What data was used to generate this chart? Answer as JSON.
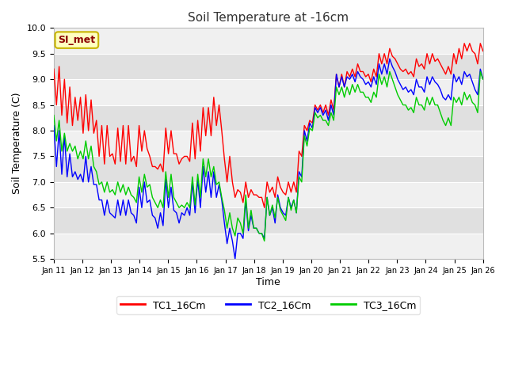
{
  "title": "Soil Temperature at -16cm",
  "xlabel": "Time",
  "ylabel": "Soil Temperature (C)",
  "ylim": [
    5.5,
    10.0
  ],
  "figure_facecolor": "#f0f0f0",
  "plot_bg_light": "#f0f0f0",
  "plot_bg_dark": "#e0e0e0",
  "annotation_text": "SI_met",
  "annotation_text_color": "#8b0000",
  "annotation_bg_color": "#ffffc0",
  "annotation_border_color": "#c8b400",
  "legend_labels": [
    "TC1_16Cm",
    "TC2_16Cm",
    "TC3_16Cm"
  ],
  "line_colors": [
    "#ff0000",
    "#0000ff",
    "#00cc00"
  ],
  "tick_labels": [
    "Jan 11",
    "Jan 12",
    "Jan 13",
    "Jan 14",
    "Jan 15",
    "Jan 16",
    "Jan 17",
    "Jan 18",
    "Jan 19",
    "Jan 20",
    "Jan 21",
    "Jan 22",
    "Jan 23",
    "Jan 24",
    "Jan 25",
    "Jan 26"
  ],
  "yticks": [
    5.5,
    6.0,
    6.5,
    7.0,
    7.5,
    8.0,
    8.5,
    9.0,
    9.5,
    10.0
  ],
  "tc1": [
    9.2,
    8.5,
    9.25,
    8.3,
    9.0,
    8.15,
    8.85,
    8.1,
    8.65,
    8.2,
    8.65,
    7.95,
    8.7,
    8.0,
    8.6,
    7.95,
    8.2,
    7.5,
    8.1,
    7.35,
    8.1,
    7.5,
    7.55,
    7.35,
    8.05,
    7.4,
    8.1,
    7.35,
    8.1,
    7.4,
    7.5,
    7.3,
    8.1,
    7.6,
    8.0,
    7.65,
    7.5,
    7.3,
    7.3,
    7.25,
    7.35,
    7.2,
    8.05,
    7.55,
    8.0,
    7.55,
    7.55,
    7.35,
    7.45,
    7.5,
    7.5,
    7.4,
    8.15,
    7.45,
    8.2,
    7.6,
    8.45,
    7.9,
    8.45,
    7.9,
    8.65,
    8.1,
    8.5,
    8.0,
    7.45,
    7.0,
    7.5,
    7.0,
    6.7,
    6.85,
    6.8,
    6.6,
    7.0,
    6.7,
    6.85,
    6.75,
    6.75,
    6.7,
    6.7,
    6.5,
    7.0,
    6.8,
    6.9,
    6.7,
    7.1,
    6.9,
    6.8,
    6.75,
    7.0,
    6.8,
    7.0,
    6.8,
    7.6,
    7.5,
    8.1,
    8.0,
    8.2,
    8.15,
    8.5,
    8.4,
    8.5,
    8.35,
    8.5,
    8.3,
    8.6,
    8.4,
    9.1,
    8.85,
    9.1,
    8.85,
    9.15,
    9.05,
    9.2,
    9.05,
    9.3,
    9.15,
    9.15,
    9.05,
    9.1,
    8.95,
    9.2,
    9.05,
    9.5,
    9.3,
    9.5,
    9.3,
    9.6,
    9.45,
    9.4,
    9.3,
    9.2,
    9.15,
    9.2,
    9.1,
    9.15,
    9.05,
    9.4,
    9.25,
    9.3,
    9.2,
    9.5,
    9.3,
    9.5,
    9.35,
    9.4,
    9.3,
    9.2,
    9.1,
    9.25,
    9.1,
    9.5,
    9.3,
    9.6,
    9.4,
    9.7,
    9.55,
    9.7,
    9.55,
    9.5,
    9.3,
    9.7,
    9.55
  ],
  "tc2": [
    8.1,
    7.3,
    8.0,
    7.15,
    7.9,
    7.1,
    7.55,
    7.1,
    7.2,
    7.05,
    7.15,
    7.0,
    7.5,
    7.0,
    7.3,
    6.95,
    6.95,
    6.65,
    6.65,
    6.35,
    6.65,
    6.4,
    6.35,
    6.3,
    6.65,
    6.35,
    6.65,
    6.35,
    6.65,
    6.4,
    6.35,
    6.2,
    6.9,
    6.5,
    7.0,
    6.6,
    6.65,
    6.35,
    6.3,
    6.1,
    6.4,
    6.15,
    7.05,
    6.5,
    6.9,
    6.45,
    6.4,
    6.2,
    6.4,
    6.35,
    6.5,
    6.35,
    7.0,
    6.4,
    7.05,
    6.5,
    7.3,
    6.8,
    7.2,
    6.7,
    7.2,
    6.7,
    6.95,
    6.65,
    6.2,
    5.8,
    6.1,
    5.85,
    5.5,
    6.0,
    6.0,
    5.9,
    6.65,
    6.05,
    6.35,
    6.1,
    6.1,
    6.0,
    6.0,
    5.9,
    6.7,
    6.35,
    6.5,
    6.2,
    6.75,
    6.5,
    6.4,
    6.35,
    6.7,
    6.5,
    6.65,
    6.4,
    7.2,
    7.1,
    8.0,
    7.8,
    8.15,
    8.05,
    8.45,
    8.35,
    8.45,
    8.3,
    8.4,
    8.2,
    8.5,
    8.3,
    9.1,
    8.85,
    9.05,
    8.85,
    9.05,
    9.0,
    9.1,
    8.95,
    9.15,
    9.05,
    9.0,
    8.9,
    8.95,
    8.85,
    9.05,
    8.9,
    9.3,
    9.1,
    9.3,
    9.1,
    9.4,
    9.25,
    9.15,
    9.0,
    8.9,
    8.8,
    8.85,
    8.75,
    8.8,
    8.7,
    9.0,
    8.85,
    8.85,
    8.75,
    9.05,
    8.9,
    9.05,
    8.95,
    8.9,
    8.8,
    8.65,
    8.6,
    8.7,
    8.6,
    9.1,
    8.95,
    9.05,
    8.9,
    9.15,
    9.05,
    9.1,
    8.95,
    8.8,
    8.7,
    9.2,
    9.0
  ],
  "tc3": [
    8.3,
    7.8,
    8.2,
    7.6,
    7.95,
    7.6,
    7.75,
    7.6,
    7.7,
    7.45,
    7.6,
    7.45,
    7.8,
    7.45,
    7.7,
    7.3,
    7.2,
    6.95,
    7.0,
    6.8,
    7.0,
    6.8,
    6.85,
    6.75,
    7.0,
    6.8,
    6.95,
    6.75,
    6.9,
    6.75,
    6.7,
    6.6,
    7.1,
    6.8,
    7.15,
    6.9,
    6.95,
    6.7,
    6.6,
    6.5,
    6.65,
    6.5,
    7.2,
    6.7,
    7.15,
    6.7,
    6.6,
    6.5,
    6.55,
    6.5,
    6.6,
    6.5,
    7.1,
    6.55,
    7.15,
    6.7,
    7.45,
    7.1,
    7.45,
    7.1,
    7.3,
    6.95,
    7.0,
    6.7,
    6.45,
    6.1,
    6.4,
    6.1,
    5.95,
    6.3,
    6.2,
    6.0,
    6.75,
    6.1,
    6.45,
    6.1,
    6.1,
    6.0,
    6.0,
    5.85,
    6.7,
    6.35,
    6.55,
    6.3,
    6.7,
    6.45,
    6.35,
    6.25,
    6.7,
    6.45,
    6.65,
    6.4,
    7.1,
    7.0,
    7.9,
    7.7,
    8.05,
    8.0,
    8.35,
    8.25,
    8.3,
    8.2,
    8.2,
    8.1,
    8.35,
    8.2,
    8.85,
    8.7,
    8.85,
    8.65,
    8.85,
    8.7,
    8.9,
    8.75,
    8.9,
    8.75,
    8.75,
    8.65,
    8.65,
    8.55,
    8.75,
    8.65,
    9.1,
    8.9,
    9.05,
    8.85,
    9.15,
    9.0,
    8.85,
    8.7,
    8.6,
    8.5,
    8.5,
    8.4,
    8.45,
    8.35,
    8.65,
    8.5,
    8.5,
    8.4,
    8.65,
    8.5,
    8.65,
    8.5,
    8.5,
    8.35,
    8.2,
    8.1,
    8.25,
    8.1,
    8.65,
    8.55,
    8.65,
    8.5,
    8.75,
    8.6,
    8.7,
    8.55,
    8.5,
    8.35,
    9.15,
    9.0
  ]
}
